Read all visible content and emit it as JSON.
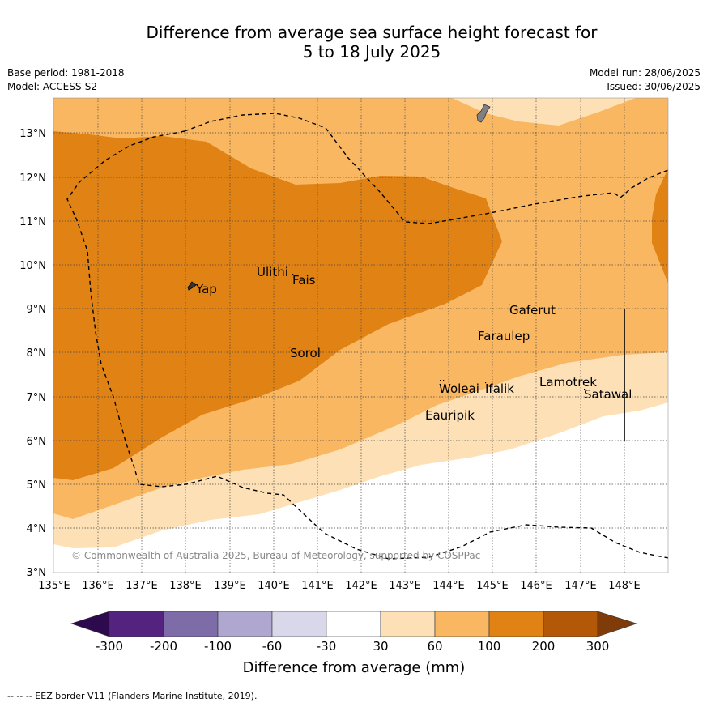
{
  "title": {
    "line1": "Difference from average sea surface height forecast for",
    "line2": "5 to 18 July 2025"
  },
  "meta": {
    "base_period": "Base period: 1981-2018",
    "model": "Model: ACCESS-S2",
    "model_run": "Model run: 28/06/2025",
    "issued": "Issued: 30/06/2025"
  },
  "copyright": "© Commonwealth of Australia 2025, Bureau of Meteorology, supported by COSPPac",
  "places": {
    "yap": "Yap",
    "ulithi": "Ulithi",
    "fais": "Fais",
    "sorol": "Sorol",
    "gaferut": "Gaferut",
    "faraulep": "Faraulep",
    "woleai": "Woleai",
    "ifalik": "Ifalik",
    "lamotrek": "Lamotrek",
    "satawal": "Satawal",
    "eauripik": "Eauripik"
  },
  "axes": {
    "x_ticks": [
      "135°E",
      "136°E",
      "137°E",
      "138°E",
      "139°E",
      "140°E",
      "141°E",
      "142°E",
      "143°E",
      "144°E",
      "145°E",
      "146°E",
      "147°E",
      "148°E"
    ],
    "y_ticks": [
      "3°N",
      "4°N",
      "5°N",
      "6°N",
      "7°N",
      "8°N",
      "9°N",
      "10°N",
      "11°N",
      "12°N",
      "13°N"
    ]
  },
  "colorbar": {
    "title": "Difference from average (mm)",
    "labels": [
      "-300",
      "-200",
      "-100",
      "-60",
      "-30",
      "30",
      "60",
      "100",
      "200",
      "300"
    ],
    "colors": {
      "lt_-300": "#2d0a4e",
      "-300_-200": "#54237f",
      "-200_-100": "#7e6ca8",
      "-100_-60": "#b0a7d0",
      "-60_-30": "#d8d8ea",
      "-30_30": "#ffffff",
      "30_60": "#fde0b5",
      "60_100": "#fab762",
      "100_200": "#e08214",
      "200_300": "#b35806",
      "gt_300": "#7f3b08"
    }
  },
  "legend_note": "--  --  -- EEZ border V11 (Flanders Marine Institute, 2019).",
  "icons": {
    "land": "island-shape"
  }
}
